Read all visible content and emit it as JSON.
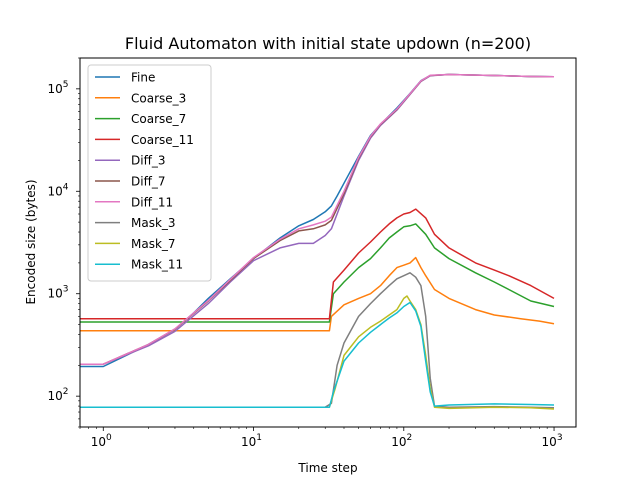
{
  "chart_data": {
    "type": "line",
    "title": "Fluid Automaton with initial state updown (n=200)",
    "xlabel": "Time step",
    "ylabel": "Encoded size (bytes)",
    "xscale": "log",
    "yscale": "log",
    "xlim": [
      0.7,
      1400
    ],
    "ylim": [
      50,
      200000
    ],
    "x_ticks": [
      {
        "value": 1,
        "base": "10",
        "exp": "0"
      },
      {
        "value": 10,
        "base": "10",
        "exp": "1"
      },
      {
        "value": 100,
        "base": "10",
        "exp": "2"
      },
      {
        "value": 1000,
        "base": "10",
        "exp": "3"
      }
    ],
    "y_ticks": [
      {
        "value": 100,
        "base": "10",
        "exp": "2"
      },
      {
        "value": 1000,
        "base": "10",
        "exp": "3"
      },
      {
        "value": 10000,
        "base": "10",
        "exp": "4"
      },
      {
        "value": 100000,
        "base": "10",
        "exp": "5"
      }
    ],
    "legend_position": "top-left",
    "series": [
      {
        "name": "Fine",
        "color": "#1f77b4",
        "points": [
          [
            0.7,
            195
          ],
          [
            1,
            195
          ],
          [
            1.5,
            260
          ],
          [
            2,
            320
          ],
          [
            3,
            450
          ],
          [
            4,
            650
          ],
          [
            5,
            900
          ],
          [
            7,
            1400
          ],
          [
            10,
            2200
          ],
          [
            15,
            3500
          ],
          [
            20,
            4600
          ],
          [
            25,
            5300
          ],
          [
            30,
            6300
          ],
          [
            33,
            7200
          ],
          [
            36,
            9000
          ],
          [
            40,
            12000
          ],
          [
            50,
            22000
          ],
          [
            60,
            35000
          ],
          [
            70,
            45000
          ],
          [
            90,
            65000
          ],
          [
            110,
            90000
          ],
          [
            130,
            120000
          ],
          [
            150,
            135000
          ],
          [
            200,
            138000
          ],
          [
            400,
            135000
          ],
          [
            700,
            132000
          ],
          [
            1000,
            131000
          ]
        ]
      },
      {
        "name": "Coarse_3",
        "color": "#ff7f0e",
        "points": [
          [
            0.7,
            435
          ],
          [
            32,
            435
          ],
          [
            33,
            600
          ],
          [
            40,
            780
          ],
          [
            50,
            900
          ],
          [
            60,
            1000
          ],
          [
            70,
            1200
          ],
          [
            80,
            1500
          ],
          [
            90,
            1800
          ],
          [
            100,
            1900
          ],
          [
            110,
            2000
          ],
          [
            120,
            2250
          ],
          [
            130,
            1800
          ],
          [
            140,
            1500
          ],
          [
            160,
            1100
          ],
          [
            200,
            900
          ],
          [
            300,
            700
          ],
          [
            400,
            620
          ],
          [
            600,
            570
          ],
          [
            800,
            540
          ],
          [
            1000,
            510
          ]
        ]
      },
      {
        "name": "Coarse_7",
        "color": "#2ca02c",
        "points": [
          [
            0.7,
            530
          ],
          [
            32,
            530
          ],
          [
            34,
            1000
          ],
          [
            40,
            1300
          ],
          [
            50,
            1800
          ],
          [
            60,
            2200
          ],
          [
            70,
            2800
          ],
          [
            80,
            3500
          ],
          [
            90,
            4000
          ],
          [
            100,
            4500
          ],
          [
            110,
            4600
          ],
          [
            120,
            4800
          ],
          [
            140,
            3800
          ],
          [
            160,
            2800
          ],
          [
            200,
            2200
          ],
          [
            300,
            1600
          ],
          [
            400,
            1300
          ],
          [
            500,
            1100
          ],
          [
            700,
            850
          ],
          [
            1000,
            750
          ]
        ]
      },
      {
        "name": "Coarse_11",
        "color": "#d62728",
        "points": [
          [
            0.7,
            570
          ],
          [
            32,
            570
          ],
          [
            34,
            1300
          ],
          [
            40,
            1700
          ],
          [
            50,
            2500
          ],
          [
            60,
            3200
          ],
          [
            70,
            4000
          ],
          [
            80,
            4800
          ],
          [
            90,
            5500
          ],
          [
            100,
            6000
          ],
          [
            110,
            6200
          ],
          [
            120,
            6700
          ],
          [
            140,
            5500
          ],
          [
            160,
            3800
          ],
          [
            200,
            2800
          ],
          [
            300,
            2000
          ],
          [
            400,
            1700
          ],
          [
            500,
            1500
          ],
          [
            700,
            1200
          ],
          [
            1000,
            900
          ]
        ]
      },
      {
        "name": "Diff_3",
        "color": "#9467bd",
        "points": [
          [
            0.7,
            205
          ],
          [
            1,
            205
          ],
          [
            2,
            310
          ],
          [
            3,
            430
          ],
          [
            5,
            800
          ],
          [
            7,
            1300
          ],
          [
            10,
            2100
          ],
          [
            15,
            2800
          ],
          [
            20,
            3100
          ],
          [
            25,
            3100
          ],
          [
            30,
            3700
          ],
          [
            33,
            4300
          ],
          [
            40,
            9000
          ],
          [
            50,
            20000
          ],
          [
            60,
            33000
          ],
          [
            70,
            44000
          ],
          [
            90,
            62000
          ],
          [
            110,
            88000
          ],
          [
            130,
            118000
          ],
          [
            150,
            134000
          ],
          [
            200,
            138000
          ],
          [
            400,
            135000
          ],
          [
            700,
            132000
          ],
          [
            1000,
            131000
          ]
        ]
      },
      {
        "name": "Diff_7",
        "color": "#8c564b",
        "points": [
          [
            0.7,
            205
          ],
          [
            1,
            205
          ],
          [
            2,
            320
          ],
          [
            3,
            450
          ],
          [
            5,
            850
          ],
          [
            7,
            1350
          ],
          [
            10,
            2200
          ],
          [
            15,
            3300
          ],
          [
            20,
            4100
          ],
          [
            25,
            4300
          ],
          [
            30,
            4700
          ],
          [
            33,
            5200
          ],
          [
            40,
            9500
          ],
          [
            50,
            21000
          ],
          [
            60,
            34000
          ],
          [
            70,
            45000
          ],
          [
            90,
            63000
          ],
          [
            110,
            89000
          ],
          [
            130,
            119000
          ],
          [
            150,
            135000
          ],
          [
            200,
            138000
          ],
          [
            400,
            135000
          ],
          [
            700,
            132000
          ],
          [
            1000,
            131000
          ]
        ]
      },
      {
        "name": "Diff_11",
        "color": "#e377c2",
        "points": [
          [
            0.7,
            205
          ],
          [
            1,
            205
          ],
          [
            2,
            320
          ],
          [
            3,
            455
          ],
          [
            5,
            860
          ],
          [
            7,
            1380
          ],
          [
            10,
            2250
          ],
          [
            15,
            3400
          ],
          [
            20,
            4300
          ],
          [
            25,
            4700
          ],
          [
            30,
            5100
          ],
          [
            33,
            5600
          ],
          [
            40,
            10000
          ],
          [
            50,
            21500
          ],
          [
            60,
            34500
          ],
          [
            70,
            45500
          ],
          [
            90,
            63500
          ],
          [
            110,
            89500
          ],
          [
            130,
            119500
          ],
          [
            150,
            135500
          ],
          [
            200,
            138000
          ],
          [
            400,
            135000
          ],
          [
            700,
            132000
          ],
          [
            1000,
            131000
          ]
        ]
      },
      {
        "name": "Mask_3",
        "color": "#7f7f7f",
        "points": [
          [
            0.7,
            78
          ],
          [
            30,
            78
          ],
          [
            33,
            85
          ],
          [
            36,
            200
          ],
          [
            40,
            330
          ],
          [
            50,
            600
          ],
          [
            60,
            800
          ],
          [
            70,
            1000
          ],
          [
            80,
            1200
          ],
          [
            90,
            1400
          ],
          [
            100,
            1500
          ],
          [
            110,
            1600
          ],
          [
            120,
            1450
          ],
          [
            130,
            1200
          ],
          [
            140,
            600
          ],
          [
            150,
            150
          ],
          [
            160,
            80
          ],
          [
            200,
            78
          ],
          [
            400,
            79
          ],
          [
            700,
            78
          ],
          [
            1000,
            77
          ]
        ]
      },
      {
        "name": "Mask_7",
        "color": "#bcbd22",
        "points": [
          [
            0.7,
            78
          ],
          [
            32,
            78
          ],
          [
            35,
            120
          ],
          [
            40,
            250
          ],
          [
            50,
            380
          ],
          [
            60,
            470
          ],
          [
            70,
            540
          ],
          [
            80,
            620
          ],
          [
            90,
            700
          ],
          [
            100,
            900
          ],
          [
            105,
            950
          ],
          [
            110,
            850
          ],
          [
            120,
            700
          ],
          [
            130,
            500
          ],
          [
            140,
            250
          ],
          [
            150,
            120
          ],
          [
            160,
            78
          ],
          [
            200,
            76
          ],
          [
            400,
            78
          ],
          [
            700,
            77
          ],
          [
            1000,
            75
          ]
        ]
      },
      {
        "name": "Mask_11",
        "color": "#17becf",
        "points": [
          [
            0.7,
            78
          ],
          [
            32,
            78
          ],
          [
            34,
            110
          ],
          [
            40,
            220
          ],
          [
            50,
            330
          ],
          [
            60,
            420
          ],
          [
            70,
            500
          ],
          [
            80,
            580
          ],
          [
            90,
            650
          ],
          [
            100,
            750
          ],
          [
            110,
            820
          ],
          [
            120,
            680
          ],
          [
            130,
            480
          ],
          [
            140,
            220
          ],
          [
            150,
            110
          ],
          [
            160,
            80
          ],
          [
            200,
            82
          ],
          [
            400,
            84
          ],
          [
            700,
            83
          ],
          [
            1000,
            82
          ]
        ]
      }
    ]
  }
}
